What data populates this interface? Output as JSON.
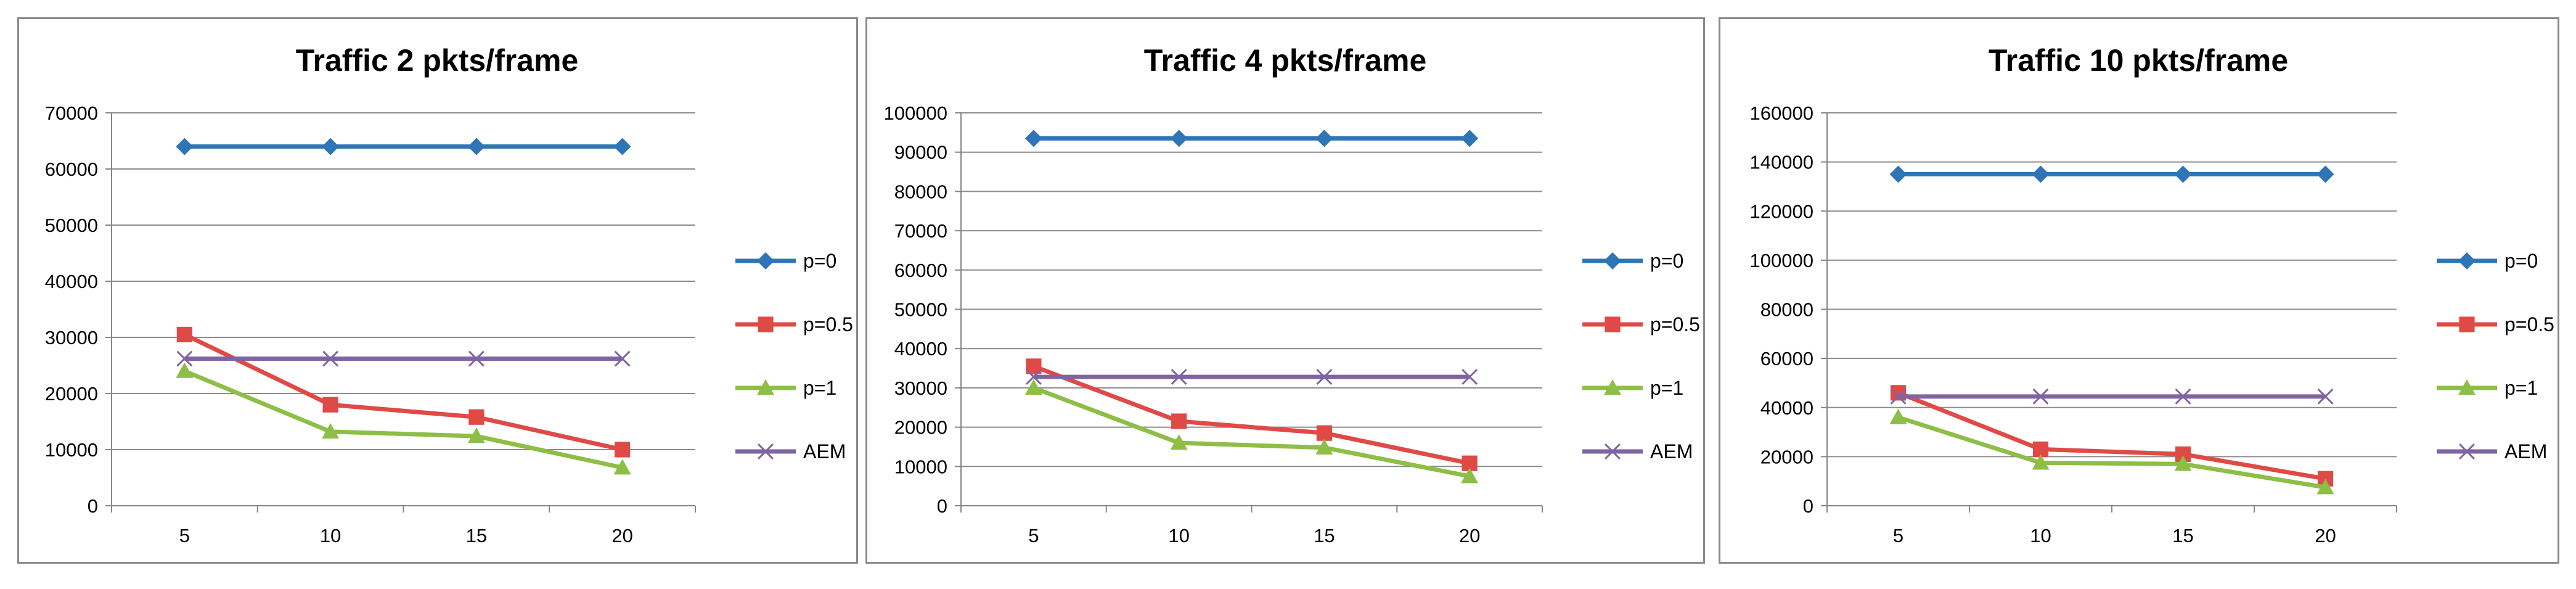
{
  "series_styles": {
    "p=0": {
      "color": "#2E75B6",
      "marker": "diamond"
    },
    "p=0.5": {
      "color": "#E04A46",
      "marker": "square"
    },
    "p=1": {
      "color": "#8DBE45",
      "marker": "triangle"
    },
    "AEM": {
      "color": "#8064A2",
      "marker": "x"
    }
  },
  "chart_data": [
    {
      "type": "line",
      "title": "Traffic 2 pkts/frame",
      "xlabel": "",
      "ylabel": "",
      "categories": [
        "5",
        "10",
        "15",
        "20"
      ],
      "ylim": [
        0,
        70000
      ],
      "yticks": [
        0,
        10000,
        20000,
        30000,
        40000,
        50000,
        60000,
        70000
      ],
      "grid": true,
      "legend": "right",
      "series": [
        {
          "name": "p=0",
          "values": [
            64000,
            64000,
            64000,
            64000
          ]
        },
        {
          "name": "p=0.5",
          "values": [
            30500,
            18000,
            15800,
            10000
          ]
        },
        {
          "name": "p=1",
          "values": [
            24000,
            13200,
            12400,
            6800
          ]
        },
        {
          "name": "AEM",
          "values": [
            26200,
            26200,
            26200,
            26200
          ]
        }
      ]
    },
    {
      "type": "line",
      "title": "Traffic 4 pkts/frame",
      "xlabel": "",
      "ylabel": "",
      "categories": [
        "5",
        "10",
        "15",
        "20"
      ],
      "ylim": [
        0,
        100000
      ],
      "yticks": [
        0,
        10000,
        20000,
        30000,
        40000,
        50000,
        60000,
        70000,
        80000,
        90000,
        100000
      ],
      "grid": true,
      "legend": "right",
      "series": [
        {
          "name": "p=0",
          "values": [
            93500,
            93500,
            93500,
            93500
          ]
        },
        {
          "name": "p=0.5",
          "values": [
            35500,
            21500,
            18500,
            10800
          ]
        },
        {
          "name": "p=1",
          "values": [
            30000,
            16000,
            14800,
            7500
          ]
        },
        {
          "name": "AEM",
          "values": [
            32800,
            32800,
            32800,
            32800
          ]
        }
      ]
    },
    {
      "type": "line",
      "title": "Traffic 10 pkts/frame",
      "xlabel": "",
      "ylabel": "",
      "categories": [
        "5",
        "10",
        "15",
        "20"
      ],
      "ylim": [
        0,
        160000
      ],
      "yticks": [
        0,
        20000,
        40000,
        60000,
        80000,
        100000,
        120000,
        140000,
        160000
      ],
      "grid": true,
      "legend": "right",
      "series": [
        {
          "name": "p=0",
          "values": [
            135000,
            135000,
            135000,
            135000
          ]
        },
        {
          "name": "p=0.5",
          "values": [
            46000,
            23000,
            21000,
            11000
          ]
        },
        {
          "name": "p=1",
          "values": [
            36000,
            17500,
            17000,
            7500
          ]
        },
        {
          "name": "AEM",
          "values": [
            44500,
            44500,
            44500,
            44500
          ]
        }
      ]
    }
  ]
}
